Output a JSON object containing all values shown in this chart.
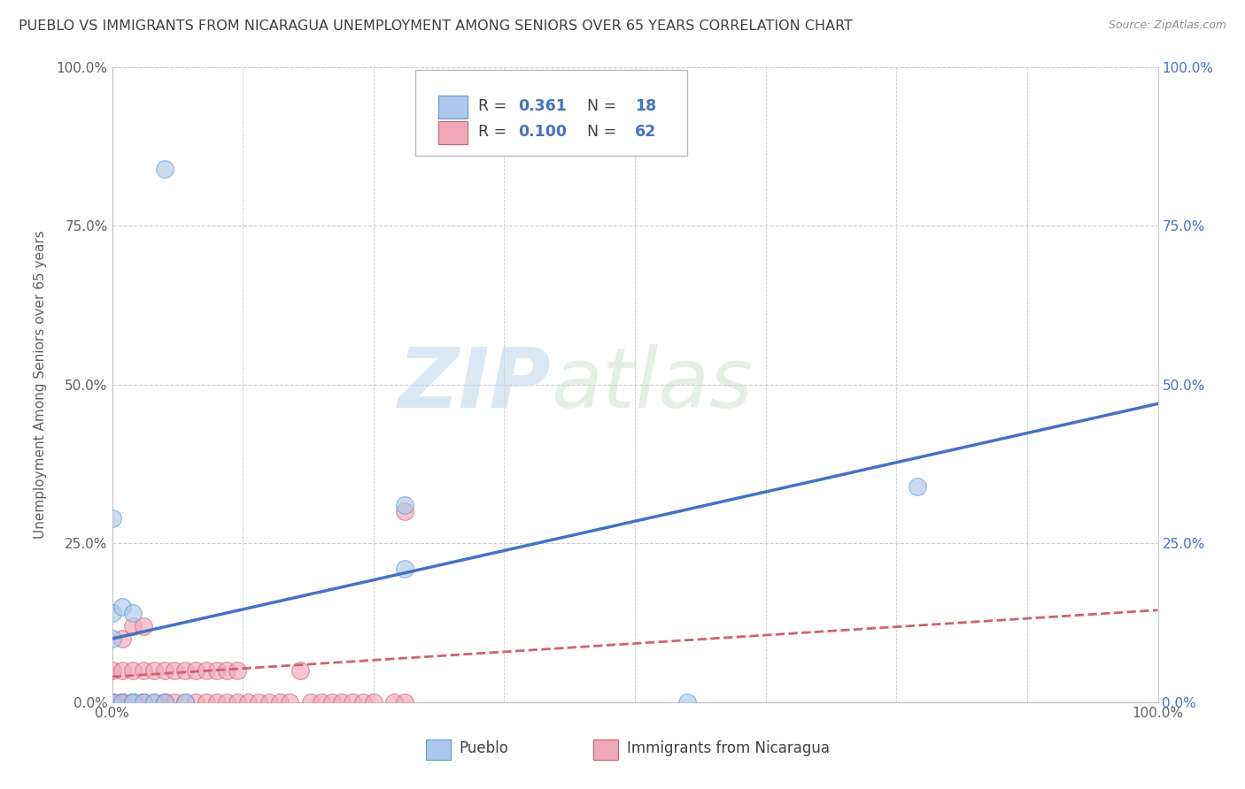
{
  "title": "PUEBLO VS IMMIGRANTS FROM NICARAGUA UNEMPLOYMENT AMONG SENIORS OVER 65 YEARS CORRELATION CHART",
  "source": "Source: ZipAtlas.com",
  "ylabel": "Unemployment Among Seniors over 65 years",
  "xlim": [
    0.0,
    1.0
  ],
  "ylim": [
    0.0,
    1.0
  ],
  "ytick_values": [
    0.0,
    0.25,
    0.5,
    0.75,
    1.0
  ],
  "ytick_labels": [
    "0.0%",
    "25.0%",
    "50.0%",
    "75.0%",
    "100.0%"
  ],
  "xtick_values": [
    0.0,
    0.125,
    0.25,
    0.375,
    0.5,
    0.625,
    0.75,
    0.875,
    1.0
  ],
  "xtick_labels_show": [
    "0.0%",
    "",
    "",
    "",
    "",
    "",
    "",
    "",
    "100.0%"
  ],
  "R1": "0.361",
  "N1": "18",
  "R2": "0.100",
  "N2": "62",
  "color_pueblo": "#adc8ea",
  "color_pueblo_edge": "#5b9bd5",
  "color_nicaragua": "#f0a8b8",
  "color_nicaragua_edge": "#d06070",
  "color_line_pueblo": "#4472c4",
  "color_line_nicaragua": "#d06070",
  "pueblo_scatter_x": [
    0.0,
    0.0,
    0.0,
    0.0,
    0.01,
    0.01,
    0.02,
    0.02,
    0.02,
    0.03,
    0.04,
    0.05,
    0.05,
    0.07,
    0.28,
    0.28,
    0.55,
    0.77
  ],
  "pueblo_scatter_y": [
    0.0,
    0.14,
    0.29,
    0.1,
    0.15,
    0.0,
    0.0,
    0.14,
    0.0,
    0.0,
    0.0,
    0.0,
    0.84,
    0.0,
    0.21,
    0.31,
    0.0,
    0.34
  ],
  "nicaragua_scatter_x": [
    0.0,
    0.0,
    0.0,
    0.0,
    0.0,
    0.0,
    0.0,
    0.0,
    0.01,
    0.01,
    0.01,
    0.01,
    0.01,
    0.01,
    0.01,
    0.02,
    0.02,
    0.02,
    0.02,
    0.02,
    0.02,
    0.03,
    0.03,
    0.03,
    0.03,
    0.03,
    0.04,
    0.04,
    0.05,
    0.05,
    0.05,
    0.05,
    0.06,
    0.06,
    0.07,
    0.07,
    0.08,
    0.08,
    0.09,
    0.09,
    0.1,
    0.1,
    0.11,
    0.11,
    0.12,
    0.12,
    0.13,
    0.14,
    0.15,
    0.16,
    0.17,
    0.18,
    0.19,
    0.2,
    0.21,
    0.22,
    0.23,
    0.24,
    0.25,
    0.27,
    0.28,
    0.28
  ],
  "nicaragua_scatter_y": [
    0.0,
    0.0,
    0.0,
    0.0,
    0.0,
    0.0,
    0.0,
    0.05,
    0.0,
    0.0,
    0.0,
    0.0,
    0.0,
    0.05,
    0.1,
    0.0,
    0.0,
    0.0,
    0.05,
    0.0,
    0.12,
    0.0,
    0.0,
    0.05,
    0.12,
    0.0,
    0.0,
    0.05,
    0.0,
    0.0,
    0.05,
    0.0,
    0.05,
    0.0,
    0.0,
    0.05,
    0.0,
    0.05,
    0.0,
    0.05,
    0.0,
    0.05,
    0.0,
    0.05,
    0.0,
    0.05,
    0.0,
    0.0,
    0.0,
    0.0,
    0.0,
    0.05,
    0.0,
    0.0,
    0.0,
    0.0,
    0.0,
    0.0,
    0.0,
    0.0,
    0.3,
    0.0
  ],
  "pueblo_line_x0": 0.0,
  "pueblo_line_x1": 1.0,
  "pueblo_line_y0": 0.1,
  "pueblo_line_y1": 0.47,
  "nicaragua_line_x0": 0.0,
  "nicaragua_line_x1": 1.0,
  "nicaragua_line_y0": 0.04,
  "nicaragua_line_y1": 0.145,
  "bg_color": "#ffffff",
  "grid_color": "#cccccc",
  "title_color": "#404040",
  "axis_color": "#606060",
  "number_color": "#4472c4"
}
